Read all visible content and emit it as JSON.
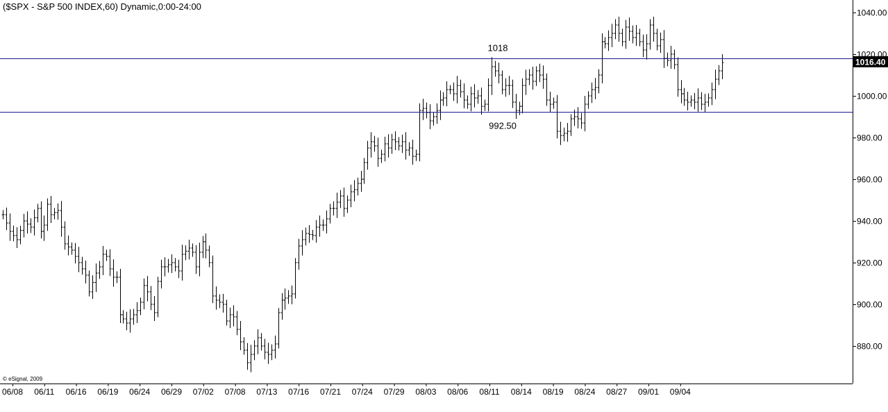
{
  "chart_data": {
    "type": "ohlc",
    "title": "($SPX - S&P 500 INDEX,60) Dynamic,0:00-24:00",
    "copyright": "© eSignal, 2009",
    "y_axis_side": "right",
    "ylim": [
      862,
      1046
    ],
    "y_ticks": [
      880,
      900,
      920,
      940,
      960,
      980,
      1000,
      1020,
      1040
    ],
    "y_tick_labels": [
      "880.00",
      "900.00",
      "920.00",
      "940.00",
      "960.00",
      "980.00",
      "1000.00",
      "1020.00",
      "1040.00"
    ],
    "x_tick_labels": [
      "06/08",
      "06/11",
      "06/16",
      "06/19",
      "06/24",
      "06/29",
      "07/02",
      "07/08",
      "07/13",
      "07/16",
      "07/21",
      "07/24",
      "07/29",
      "08/03",
      "08/06",
      "08/11",
      "08/14",
      "08/19",
      "08/24",
      "08/27",
      "09/01",
      "09/04"
    ],
    "last_price": 1016.4,
    "last_price_label": "1016.40",
    "horizontal_lines": [
      {
        "value": 1018,
        "label": "1018",
        "color": "#1a1a8c"
      },
      {
        "value": 992.5,
        "label": "992.50",
        "color": "#1a1a8c"
      }
    ],
    "path_waypoints": [
      [
        0,
        943
      ],
      [
        2,
        935
      ],
      [
        4,
        931
      ],
      [
        6,
        940
      ],
      [
        8,
        937
      ],
      [
        10,
        946
      ],
      [
        11,
        935
      ],
      [
        12,
        938
      ],
      [
        13,
        948
      ],
      [
        14,
        943
      ],
      [
        16,
        945
      ],
      [
        18,
        929
      ],
      [
        20,
        926
      ],
      [
        22,
        920
      ],
      [
        24,
        914
      ],
      [
        25,
        906
      ],
      [
        27,
        915
      ],
      [
        28,
        918
      ],
      [
        29,
        924
      ],
      [
        30,
        923
      ],
      [
        31,
        917
      ],
      [
        32,
        913
      ],
      [
        33,
        913
      ],
      [
        34,
        895
      ],
      [
        35,
        893
      ],
      [
        36,
        891
      ],
      [
        37,
        893
      ],
      [
        38,
        895
      ],
      [
        39,
        897
      ],
      [
        40,
        901
      ],
      [
        41,
        909
      ],
      [
        42,
        906
      ],
      [
        43,
        900
      ],
      [
        44,
        896
      ],
      [
        45,
        911
      ],
      [
        46,
        918
      ],
      [
        47,
        918
      ],
      [
        49,
        920
      ],
      [
        51,
        916
      ],
      [
        52,
        924
      ],
      [
        54,
        927
      ],
      [
        55,
        925
      ],
      [
        56,
        918
      ],
      [
        57,
        925
      ],
      [
        58,
        930
      ],
      [
        59,
        926
      ],
      [
        60,
        920
      ],
      [
        61,
        904
      ],
      [
        62,
        902
      ],
      [
        64,
        900
      ],
      [
        65,
        892
      ],
      [
        66,
        895
      ],
      [
        67,
        894
      ],
      [
        69,
        882
      ],
      [
        70,
        878
      ],
      [
        71,
        872
      ],
      [
        72,
        876
      ],
      [
        73,
        880
      ],
      [
        74,
        884
      ],
      [
        75,
        880
      ],
      [
        76,
        877
      ],
      [
        77,
        876
      ],
      [
        78,
        878
      ],
      [
        79,
        881
      ],
      [
        80,
        896
      ],
      [
        81,
        902
      ],
      [
        82,
        903
      ],
      [
        84,
        905
      ],
      [
        85,
        920
      ],
      [
        86,
        928
      ],
      [
        87,
        931
      ],
      [
        88,
        934
      ],
      [
        90,
        933
      ],
      [
        91,
        937
      ],
      [
        92,
        938
      ],
      [
        93,
        938
      ],
      [
        94,
        941
      ],
      [
        95,
        946
      ],
      [
        96,
        946
      ],
      [
        97,
        949
      ],
      [
        98,
        952
      ],
      [
        99,
        946
      ],
      [
        100,
        950
      ],
      [
        101,
        954
      ],
      [
        102,
        955
      ],
      [
        103,
        958
      ],
      [
        104,
        960
      ],
      [
        105,
        968
      ],
      [
        106,
        975
      ],
      [
        107,
        978
      ],
      [
        108,
        976
      ],
      [
        109,
        970
      ],
      [
        110,
        972
      ],
      [
        111,
        977
      ],
      [
        112,
        975
      ],
      [
        113,
        979
      ],
      [
        114,
        978
      ],
      [
        115,
        976
      ],
      [
        116,
        978
      ],
      [
        117,
        974
      ],
      [
        118,
        975
      ],
      [
        119,
        971
      ],
      [
        120,
        972
      ],
      [
        121,
        993
      ],
      [
        122,
        994
      ],
      [
        123,
        992
      ],
      [
        124,
        988
      ],
      [
        125,
        990
      ],
      [
        126,
        993
      ],
      [
        127,
        998
      ],
      [
        128,
        999
      ],
      [
        129,
        1003
      ],
      [
        130,
        1003
      ],
      [
        131,
        1001
      ],
      [
        132,
        1005
      ],
      [
        133,
        1002
      ],
      [
        134,
        998
      ],
      [
        135,
        996
      ],
      [
        136,
        1001
      ],
      [
        137,
        999
      ],
      [
        138,
        1000
      ],
      [
        139,
        995
      ],
      [
        140,
        996
      ],
      [
        141,
        1005
      ],
      [
        142,
        1014
      ],
      [
        143,
        1012
      ],
      [
        144,
        1010
      ],
      [
        145,
        1003
      ],
      [
        146,
        1005
      ],
      [
        147,
        1005
      ],
      [
        148,
        997
      ],
      [
        149,
        993
      ],
      [
        150,
        995
      ],
      [
        151,
        1005
      ],
      [
        152,
        1008
      ],
      [
        153,
        1010
      ],
      [
        154,
        1007
      ],
      [
        155,
        1012
      ],
      [
        156,
        1010
      ],
      [
        157,
        1008
      ],
      [
        158,
        998
      ],
      [
        159,
        996
      ],
      [
        160,
        997
      ],
      [
        161,
        983
      ],
      [
        162,
        981
      ],
      [
        163,
        982
      ],
      [
        164,
        983
      ],
      [
        165,
        989
      ],
      [
        166,
        990
      ],
      [
        167,
        989
      ],
      [
        168,
        987
      ],
      [
        169,
        996
      ],
      [
        170,
        1000
      ],
      [
        171,
        1003
      ],
      [
        172,
        1004
      ],
      [
        173,
        1010
      ],
      [
        174,
        1026
      ],
      [
        175,
        1025
      ],
      [
        176,
        1028
      ],
      [
        177,
        1030
      ],
      [
        178,
        1034
      ],
      [
        179,
        1030
      ],
      [
        180,
        1026
      ],
      [
        181,
        1033
      ],
      [
        182,
        1031
      ],
      [
        183,
        1028
      ],
      [
        184,
        1030
      ],
      [
        185,
        1026
      ],
      [
        186,
        1022
      ],
      [
        187,
        1025
      ],
      [
        188,
        1034
      ],
      [
        189,
        1030
      ],
      [
        190,
        1024
      ],
      [
        191,
        1027
      ],
      [
        192,
        1018
      ],
      [
        193,
        1017
      ],
      [
        194,
        1020
      ],
      [
        195,
        1015
      ],
      [
        196,
        1003
      ],
      [
        197,
        1001
      ],
      [
        198,
        998
      ],
      [
        199,
        997
      ],
      [
        200,
        998
      ],
      [
        201,
        997
      ],
      [
        202,
        999
      ],
      [
        203,
        996
      ],
      [
        204,
        997
      ],
      [
        205,
        999
      ],
      [
        206,
        1003
      ],
      [
        207,
        1008
      ],
      [
        208,
        1012
      ],
      [
        209,
        1016
      ]
    ]
  }
}
